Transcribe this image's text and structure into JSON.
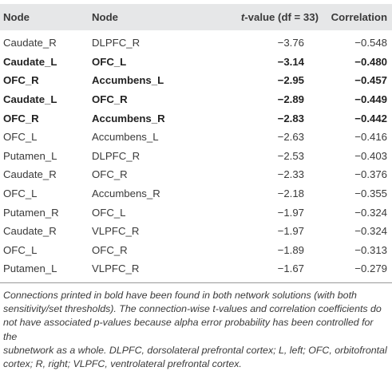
{
  "table": {
    "headers": {
      "node1": "Node",
      "node2": "Node",
      "t_italic": "t",
      "t_rest": "-value (df = 33)",
      "correlation": "Correlation"
    },
    "rows": [
      {
        "node1": "Caudate_R",
        "node2": "DLPFC_R",
        "t": "−3.76",
        "r": "−0.548",
        "bold": false
      },
      {
        "node1": "Caudate_L",
        "node2": "OFC_L",
        "t": "−3.14",
        "r": "−0.480",
        "bold": true
      },
      {
        "node1": "OFC_R",
        "node2": "Accumbens_L",
        "t": "−2.95",
        "r": "−0.457",
        "bold": true
      },
      {
        "node1": "Caudate_L",
        "node2": "OFC_R",
        "t": "−2.89",
        "r": "−0.449",
        "bold": true
      },
      {
        "node1": "OFC_R",
        "node2": "Accumbens_R",
        "t": "−2.83",
        "r": "−0.442",
        "bold": true
      },
      {
        "node1": "OFC_L",
        "node2": "Accumbens_L",
        "t": "−2.63",
        "r": "−0.416",
        "bold": false
      },
      {
        "node1": "Putamen_L",
        "node2": "DLPFC_R",
        "t": "−2.53",
        "r": "−0.403",
        "bold": false
      },
      {
        "node1": "Caudate_R",
        "node2": "OFC_R",
        "t": "−2.33",
        "r": "−0.376",
        "bold": false
      },
      {
        "node1": "OFC_L",
        "node2": "Accumbens_R",
        "t": "−2.18",
        "r": "−0.355",
        "bold": false
      },
      {
        "node1": "Putamen_R",
        "node2": "OFC_L",
        "t": "−1.97",
        "r": "−0.324",
        "bold": false
      },
      {
        "node1": "Caudate_R",
        "node2": "VLPFC_R",
        "t": "−1.97",
        "r": "−0.324",
        "bold": false
      },
      {
        "node1": "OFC_L",
        "node2": "OFC_R",
        "t": "−1.89",
        "r": "−0.313",
        "bold": false
      },
      {
        "node1": "Putamen_L",
        "node2": "VLPFC_R",
        "t": "−1.67",
        "r": "−0.279",
        "bold": false
      }
    ]
  },
  "footnote": {
    "lines": [
      "Connections printed in bold have been found in both network solutions (with both",
      "sensitivity/set thresholds). The connection-wise t-values and correlation coefficients do",
      "not have associated p-values because alpha error probability has been controlled for the",
      "subnetwork as a whole. DLPFC, dorsolateral prefrontal cortex; L, left; OFC, orbitofrontal",
      "cortex; R, right; VLPFC, ventrolateral prefrontal cortex."
    ]
  }
}
